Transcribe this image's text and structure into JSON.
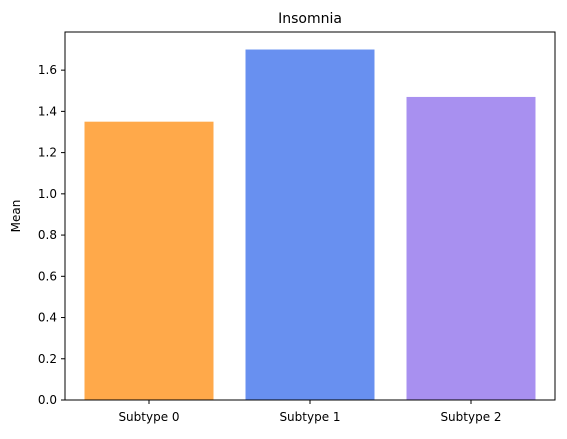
{
  "chart_data": {
    "type": "bar",
    "title": "Insomnia",
    "xlabel": "",
    "ylabel": "Mean",
    "categories": [
      "Subtype 0",
      "Subtype 1",
      "Subtype 2"
    ],
    "values": [
      1.35,
      1.7,
      1.47
    ],
    "colors": [
      "#FFA94A",
      "#6890F0",
      "#A890F0"
    ],
    "ylim": [
      0,
      1.785
    ],
    "yticks": [
      0.0,
      0.2,
      0.4,
      0.6,
      0.8,
      1.0,
      1.2,
      1.4,
      1.6
    ],
    "ytick_labels": [
      "0.0",
      "0.2",
      "0.4",
      "0.6",
      "0.8",
      "1.0",
      "1.2",
      "1.4",
      "1.6"
    ],
    "grid": false,
    "legend": "none"
  }
}
